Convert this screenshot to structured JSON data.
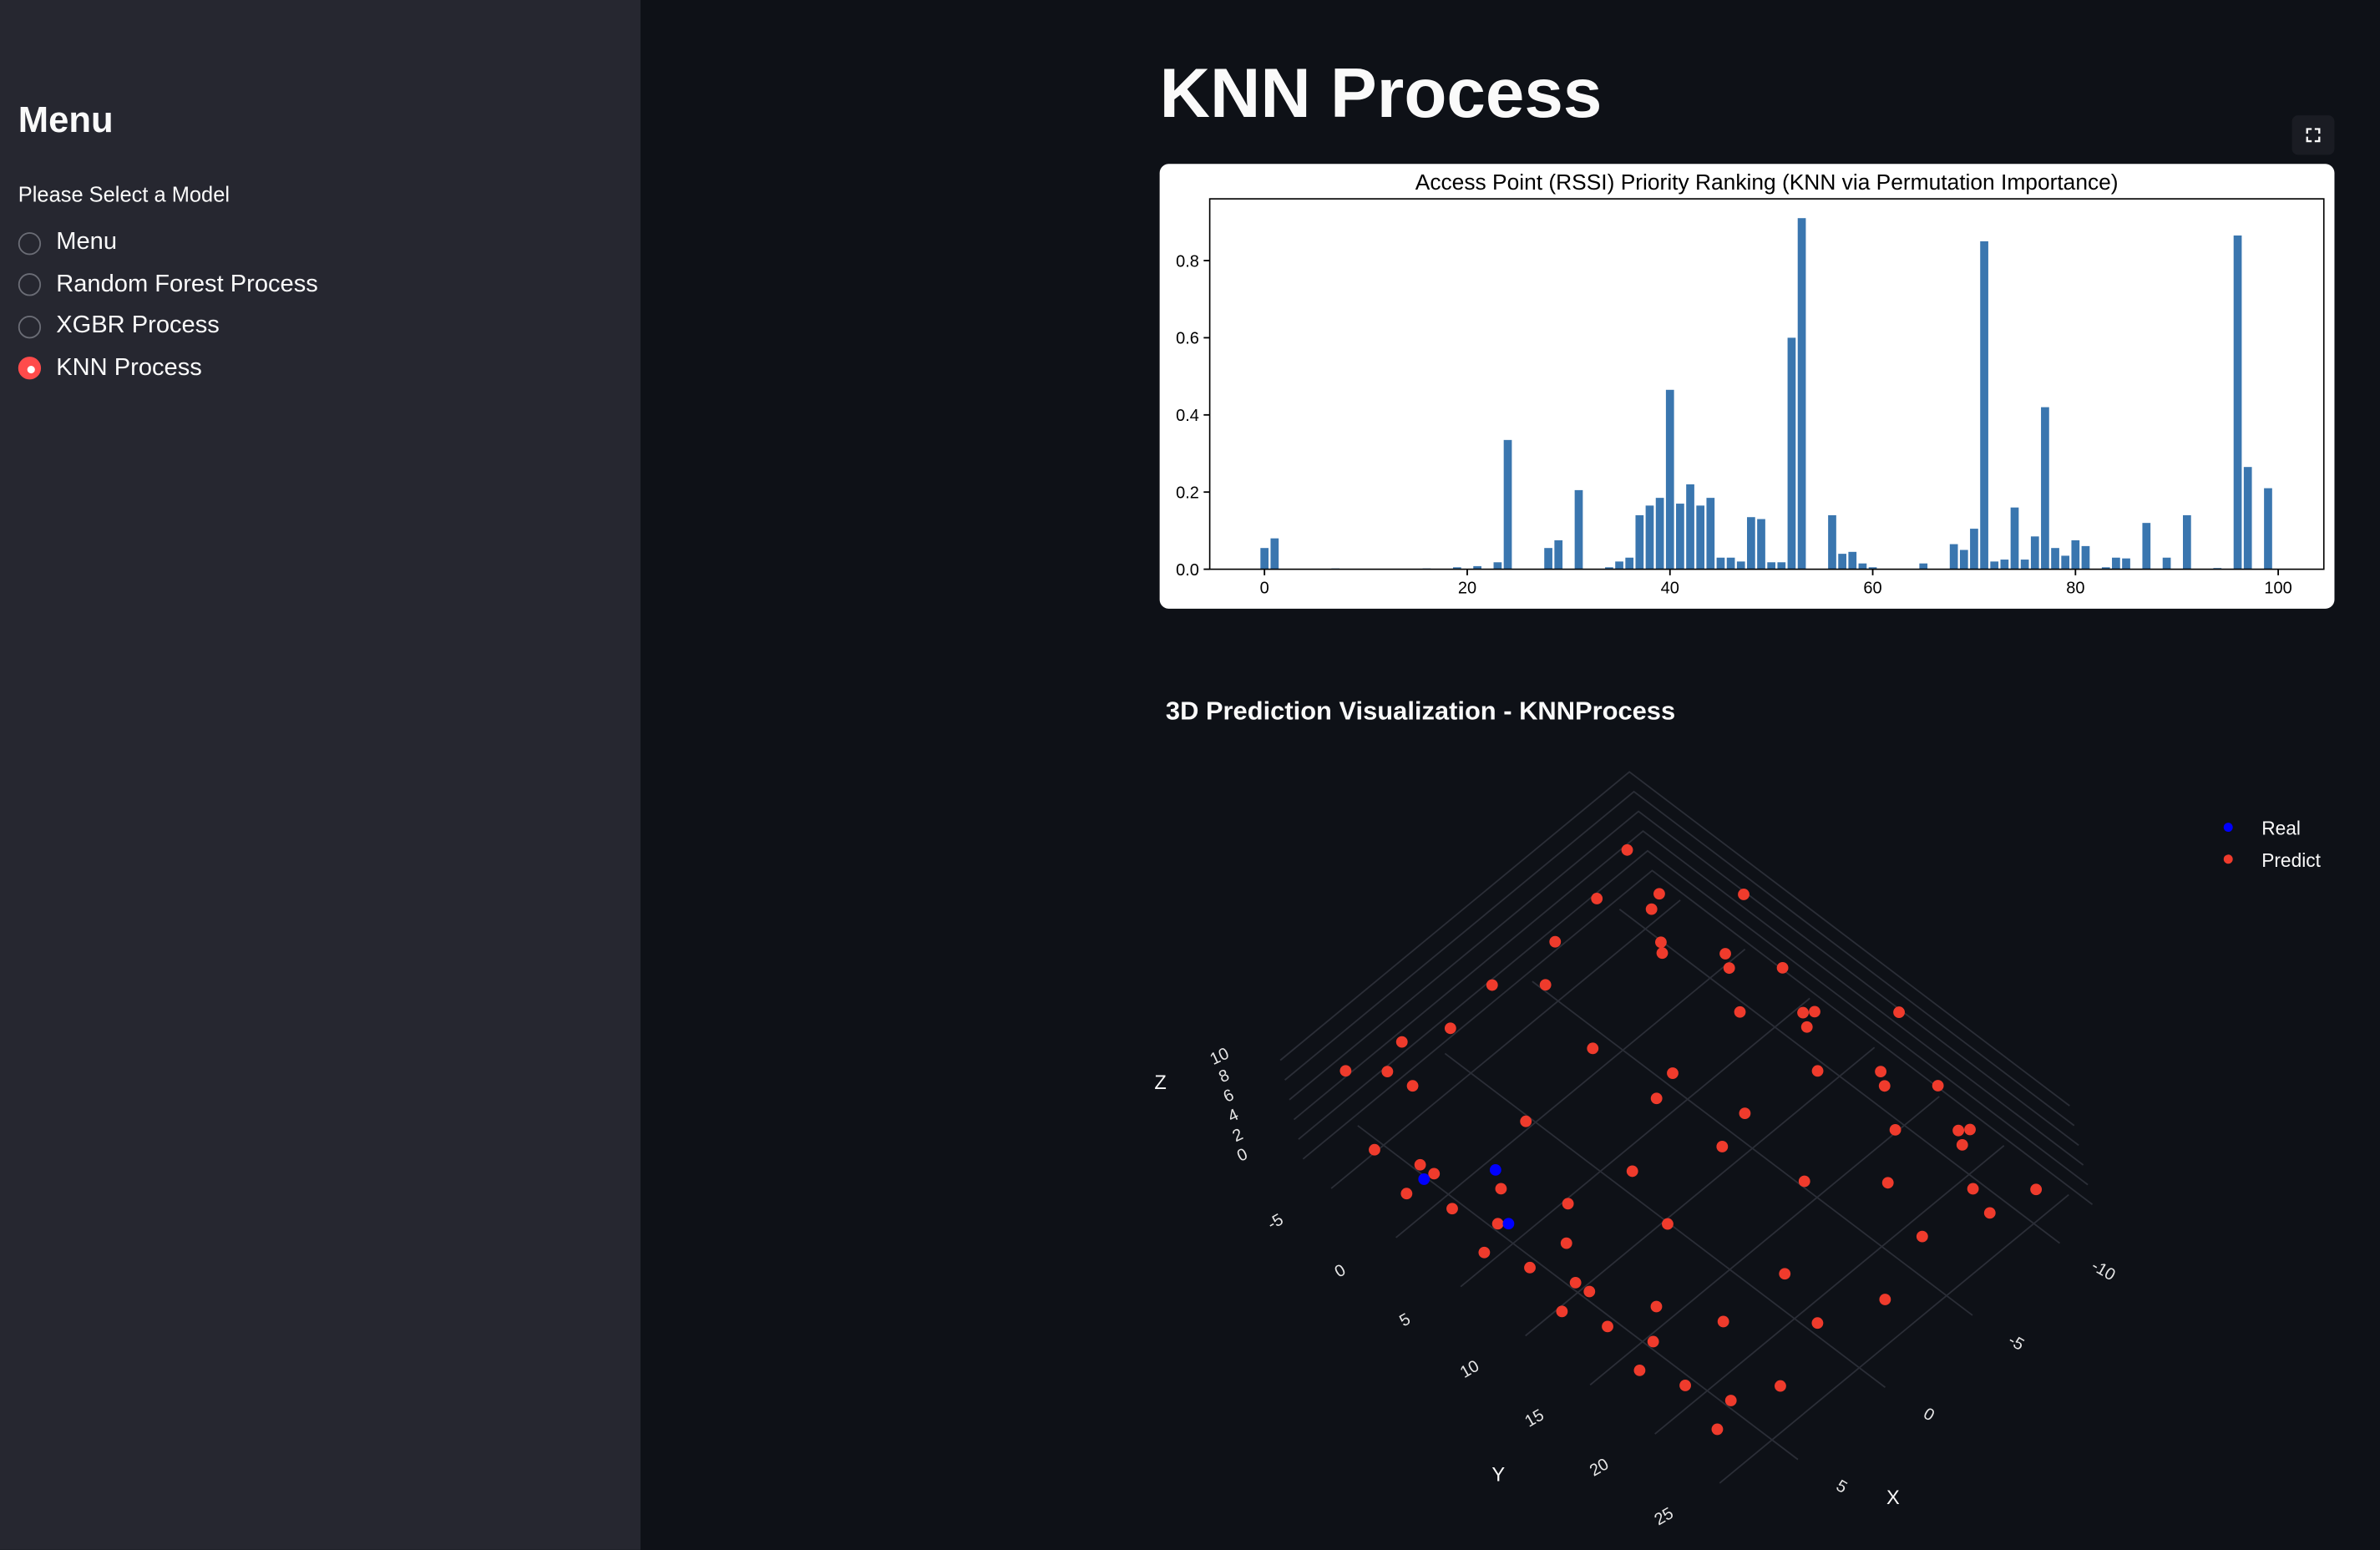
{
  "sidebar": {
    "title": "Menu",
    "prompt": "Please Select a Model",
    "options": [
      "Menu",
      "Random Forest Process",
      "XGBR Process",
      "KNN Process"
    ],
    "selected": 3
  },
  "header": {
    "title": "KNN Process"
  },
  "chart_data": [
    {
      "type": "bar",
      "title": "Access Point (RSSI) Priority Ranking (KNN via Permutation Importance)",
      "color": "#3a76af",
      "x": [
        0,
        1,
        2,
        3,
        4,
        5,
        6,
        7,
        8,
        9,
        10,
        11,
        12,
        13,
        14,
        15,
        16,
        17,
        18,
        19,
        20,
        21,
        22,
        23,
        24,
        25,
        26,
        27,
        28,
        29,
        30,
        31,
        32,
        33,
        34,
        35,
        36,
        37,
        38,
        39,
        40,
        41,
        42,
        43,
        44,
        45,
        46,
        47,
        48,
        49,
        50,
        51,
        52,
        53,
        54,
        55,
        56,
        57,
        58,
        59,
        60,
        61,
        62,
        63,
        64,
        65,
        66,
        67,
        68,
        69,
        70,
        71,
        72,
        73,
        74,
        75,
        76,
        77,
        78,
        79,
        80,
        81,
        82,
        83,
        84,
        85,
        86,
        87,
        88,
        89,
        90,
        91,
        92,
        93,
        94,
        95,
        96,
        97,
        98,
        99,
        100
      ],
      "values": [
        0.055,
        0.08,
        0,
        0,
        0,
        0,
        0,
        0.002,
        0,
        0,
        0,
        0,
        0,
        0,
        0,
        0,
        0.002,
        0,
        0,
        0.005,
        0,
        0.008,
        0,
        0.018,
        0.335,
        0,
        0,
        0,
        0.055,
        0.075,
        0,
        0.205,
        0,
        0,
        0.005,
        0.02,
        0.03,
        0.14,
        0.165,
        0.185,
        0.465,
        0.17,
        0.22,
        0.165,
        0.185,
        0.03,
        0.03,
        0.02,
        0.135,
        0.13,
        0.018,
        0.018,
        0.6,
        0.91,
        0,
        0,
        0.14,
        0.04,
        0.045,
        0.015,
        0.005,
        0,
        0,
        0,
        0,
        0.015,
        0,
        0,
        0.065,
        0.05,
        0.105,
        0.85,
        0.02,
        0.025,
        0.16,
        0.025,
        0.085,
        0.42,
        0.055,
        0.035,
        0.075,
        0.06,
        0,
        0.005,
        0.03,
        0.028,
        0,
        0.12,
        0,
        0.03,
        0,
        0.14,
        0,
        0,
        0.003,
        0,
        0.865,
        0.265,
        0,
        0.21,
        0
      ],
      "xlim": [
        -5.4,
        104.5
      ],
      "ylim": [
        0,
        0.96
      ],
      "xticks": [
        0,
        20,
        40,
        60,
        80,
        100
      ],
      "yticks": [
        {
          "value": 0,
          "label": "0.0"
        },
        0.2,
        0.4,
        0.6,
        0.8
      ]
    },
    {
      "type": "scatter3d",
      "title": "3D Prediction Visualization - KNNProcess",
      "xlabel": "X",
      "ylabel": "Y",
      "zlabel": "Z",
      "xlim": [
        -12,
        8
      ],
      "ylim": [
        -7,
        27
      ],
      "zlim": [
        -1,
        12
      ],
      "xticks": [
        -10,
        -5,
        0,
        5
      ],
      "yticks": [
        -5,
        0,
        5,
        10,
        15,
        20,
        25
      ],
      "zticks": [
        0,
        2,
        4,
        6,
        8,
        10
      ],
      "legend": "upper right",
      "series": [
        {
          "name": "Real",
          "color": "#0000ff",
          "x": [
            6,
            4,
            5
          ],
          "y": [
            0,
            3,
            5
          ],
          "z": [
            2,
            3,
            1
          ]
        },
        {
          "name": "Predict",
          "color": "#ef3b2c",
          "x": [
            6,
            5,
            7,
            6,
            5,
            7,
            6,
            5,
            7,
            6,
            5,
            7,
            6,
            5,
            7,
            -10,
            -9,
            -11,
            -10,
            -9,
            -11,
            -10,
            -9,
            -11,
            -10,
            -9,
            -11,
            -10,
            -9,
            -11,
            6,
            5,
            7,
            6,
            5,
            7,
            6,
            5,
            -10,
            -9,
            -11,
            -10,
            -9,
            -11,
            -10,
            -9,
            -8,
            -5,
            -2,
            1,
            4,
            -8,
            -5,
            -2,
            1,
            4,
            -2,
            -1,
            -2,
            -1,
            -2,
            2,
            0,
            -4,
            3,
            -6,
            1,
            -3,
            4,
            -7,
            5
          ],
          "y": [
            -4,
            -2,
            0,
            2,
            4,
            6,
            8,
            10,
            12,
            14,
            16,
            18,
            20,
            22,
            24,
            -4,
            -2,
            0,
            2,
            4,
            6,
            8,
            10,
            12,
            14,
            16,
            18,
            20,
            22,
            24,
            -5,
            -1,
            3,
            7,
            11,
            15,
            19,
            23,
            -5,
            -1,
            3,
            7,
            11,
            15,
            19,
            23,
            -5,
            -4,
            -5,
            -4,
            -5,
            25,
            24,
            25,
            24,
            25,
            0,
            5,
            10,
            15,
            20,
            3,
            8,
            12,
            16,
            20,
            22,
            6,
            -3,
            2,
            10
          ],
          "z": [
            1,
            0,
            2,
            1,
            0,
            2,
            1,
            0,
            2,
            1,
            0,
            2,
            1,
            0,
            2,
            2,
            1,
            0,
            2,
            1,
            0,
            2,
            1,
            0,
            2,
            1,
            0,
            2,
            1,
            0,
            8,
            9,
            7,
            8,
            9,
            7,
            8,
            9,
            7,
            8,
            9,
            7,
            8,
            9,
            7,
            8,
            5,
            6,
            5,
            6,
            5,
            3,
            4,
            3,
            4,
            3,
            10,
            10,
            11,
            10,
            10,
            5,
            2,
            6,
            9,
            4,
            7,
            3,
            10,
            9,
            4
          ]
        }
      ]
    }
  ]
}
